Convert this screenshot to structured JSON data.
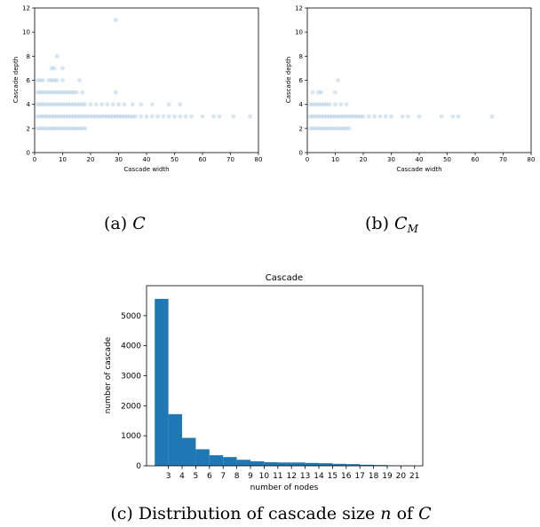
{
  "chart_data": [
    {
      "type": "scatter",
      "caption": "(a) C",
      "xlabel": "Cascade width",
      "ylabel": "Cascade depth",
      "xlim": [
        0,
        80
      ],
      "ylim": [
        0,
        12
      ],
      "xticks": [
        0,
        10,
        20,
        30,
        40,
        50,
        60,
        70,
        80
      ],
      "yticks": [
        0,
        2,
        4,
        6,
        8,
        10,
        12
      ],
      "color": "#1f77b4",
      "points": [
        [
          1,
          2
        ],
        [
          2,
          2
        ],
        [
          3,
          2
        ],
        [
          4,
          2
        ],
        [
          5,
          2
        ],
        [
          6,
          2
        ],
        [
          7,
          2
        ],
        [
          8,
          2
        ],
        [
          9,
          2
        ],
        [
          10,
          2
        ],
        [
          11,
          2
        ],
        [
          12,
          2
        ],
        [
          13,
          2
        ],
        [
          14,
          2
        ],
        [
          15,
          2
        ],
        [
          16,
          2
        ],
        [
          17,
          2
        ],
        [
          18,
          2
        ],
        [
          1,
          3
        ],
        [
          2,
          3
        ],
        [
          3,
          3
        ],
        [
          4,
          3
        ],
        [
          5,
          3
        ],
        [
          6,
          3
        ],
        [
          7,
          3
        ],
        [
          8,
          3
        ],
        [
          9,
          3
        ],
        [
          10,
          3
        ],
        [
          11,
          3
        ],
        [
          12,
          3
        ],
        [
          13,
          3
        ],
        [
          14,
          3
        ],
        [
          15,
          3
        ],
        [
          16,
          3
        ],
        [
          17,
          3
        ],
        [
          18,
          3
        ],
        [
          19,
          3
        ],
        [
          20,
          3
        ],
        [
          21,
          3
        ],
        [
          22,
          3
        ],
        [
          23,
          3
        ],
        [
          24,
          3
        ],
        [
          25,
          3
        ],
        [
          26,
          3
        ],
        [
          27,
          3
        ],
        [
          28,
          3
        ],
        [
          29,
          3
        ],
        [
          30,
          3
        ],
        [
          31,
          3
        ],
        [
          32,
          3
        ],
        [
          33,
          3
        ],
        [
          34,
          3
        ],
        [
          35,
          3
        ],
        [
          36,
          3
        ],
        [
          38,
          3
        ],
        [
          40,
          3
        ],
        [
          42,
          3
        ],
        [
          44,
          3
        ],
        [
          46,
          3
        ],
        [
          48,
          3
        ],
        [
          50,
          3
        ],
        [
          52,
          3
        ],
        [
          54,
          3
        ],
        [
          56,
          3
        ],
        [
          60,
          3
        ],
        [
          64,
          3
        ],
        [
          66,
          3
        ],
        [
          71,
          3
        ],
        [
          77,
          3
        ],
        [
          1,
          4
        ],
        [
          2,
          4
        ],
        [
          3,
          4
        ],
        [
          4,
          4
        ],
        [
          5,
          4
        ],
        [
          6,
          4
        ],
        [
          7,
          4
        ],
        [
          8,
          4
        ],
        [
          9,
          4
        ],
        [
          10,
          4
        ],
        [
          11,
          4
        ],
        [
          12,
          4
        ],
        [
          13,
          4
        ],
        [
          14,
          4
        ],
        [
          15,
          4
        ],
        [
          16,
          4
        ],
        [
          17,
          4
        ],
        [
          18,
          4
        ],
        [
          20,
          4
        ],
        [
          22,
          4
        ],
        [
          24,
          4
        ],
        [
          26,
          4
        ],
        [
          28,
          4
        ],
        [
          30,
          4
        ],
        [
          32,
          4
        ],
        [
          35,
          4
        ],
        [
          38,
          4
        ],
        [
          42,
          4
        ],
        [
          48,
          4
        ],
        [
          52,
          4
        ],
        [
          1,
          5
        ],
        [
          2,
          5
        ],
        [
          3,
          5
        ],
        [
          4,
          5
        ],
        [
          5,
          5
        ],
        [
          6,
          5
        ],
        [
          7,
          5
        ],
        [
          8,
          5
        ],
        [
          9,
          5
        ],
        [
          10,
          5
        ],
        [
          11,
          5
        ],
        [
          12,
          5
        ],
        [
          13,
          5
        ],
        [
          14,
          5
        ],
        [
          15,
          5
        ],
        [
          17,
          5
        ],
        [
          29,
          5
        ],
        [
          1,
          6
        ],
        [
          2,
          6
        ],
        [
          3,
          6
        ],
        [
          5,
          6
        ],
        [
          6,
          6
        ],
        [
          7,
          6
        ],
        [
          8,
          6
        ],
        [
          10,
          6
        ],
        [
          16,
          6
        ],
        [
          6,
          7
        ],
        [
          7,
          7
        ],
        [
          10,
          7
        ],
        [
          8,
          8
        ],
        [
          29,
          11
        ]
      ]
    },
    {
      "type": "scatter",
      "caption": "(b) C_M",
      "xlabel": "Cascade width",
      "ylabel": "Cascade depth",
      "xlim": [
        0,
        80
      ],
      "ylim": [
        0,
        12
      ],
      "xticks": [
        0,
        10,
        20,
        30,
        40,
        50,
        60,
        70,
        80
      ],
      "yticks": [
        0,
        2,
        4,
        6,
        8,
        10,
        12
      ],
      "color": "#1f77b4",
      "points": [
        [
          1,
          2
        ],
        [
          2,
          2
        ],
        [
          3,
          2
        ],
        [
          4,
          2
        ],
        [
          5,
          2
        ],
        [
          6,
          2
        ],
        [
          7,
          2
        ],
        [
          8,
          2
        ],
        [
          9,
          2
        ],
        [
          10,
          2
        ],
        [
          11,
          2
        ],
        [
          12,
          2
        ],
        [
          13,
          2
        ],
        [
          14,
          2
        ],
        [
          15,
          2
        ],
        [
          1,
          3
        ],
        [
          2,
          3
        ],
        [
          3,
          3
        ],
        [
          4,
          3
        ],
        [
          5,
          3
        ],
        [
          6,
          3
        ],
        [
          7,
          3
        ],
        [
          8,
          3
        ],
        [
          9,
          3
        ],
        [
          10,
          3
        ],
        [
          11,
          3
        ],
        [
          12,
          3
        ],
        [
          13,
          3
        ],
        [
          14,
          3
        ],
        [
          15,
          3
        ],
        [
          16,
          3
        ],
        [
          17,
          3
        ],
        [
          18,
          3
        ],
        [
          19,
          3
        ],
        [
          20,
          3
        ],
        [
          22,
          3
        ],
        [
          24,
          3
        ],
        [
          26,
          3
        ],
        [
          28,
          3
        ],
        [
          30,
          3
        ],
        [
          34,
          3
        ],
        [
          36,
          3
        ],
        [
          40,
          3
        ],
        [
          48,
          3
        ],
        [
          52,
          3
        ],
        [
          54,
          3
        ],
        [
          66,
          3
        ],
        [
          1,
          4
        ],
        [
          2,
          4
        ],
        [
          3,
          4
        ],
        [
          4,
          4
        ],
        [
          5,
          4
        ],
        [
          6,
          4
        ],
        [
          7,
          4
        ],
        [
          8,
          4
        ],
        [
          10,
          4
        ],
        [
          12,
          4
        ],
        [
          14,
          4
        ],
        [
          2,
          5
        ],
        [
          4,
          5
        ],
        [
          5,
          5
        ],
        [
          10,
          5
        ],
        [
          11,
          6
        ]
      ]
    },
    {
      "type": "bar",
      "caption": "(c) Distribution of cascade size n of C",
      "title": "Cascade",
      "xlabel": "number of nodes",
      "ylabel": "number of cascade",
      "categories": [
        "3",
        "4",
        "5",
        "6",
        "7",
        "8",
        "9",
        "10",
        "11",
        "12",
        "13",
        "14",
        "15",
        "16",
        "17",
        "18",
        "19",
        "20",
        "21"
      ],
      "values": [
        5560,
        1720,
        930,
        550,
        350,
        290,
        200,
        150,
        120,
        110,
        110,
        95,
        85,
        65,
        55,
        35,
        25,
        10,
        5
      ],
      "ylim": [
        0,
        6000
      ],
      "yticks": [
        0,
        1000,
        2000,
        3000,
        4000,
        5000
      ],
      "color": "#1f77b4"
    }
  ]
}
